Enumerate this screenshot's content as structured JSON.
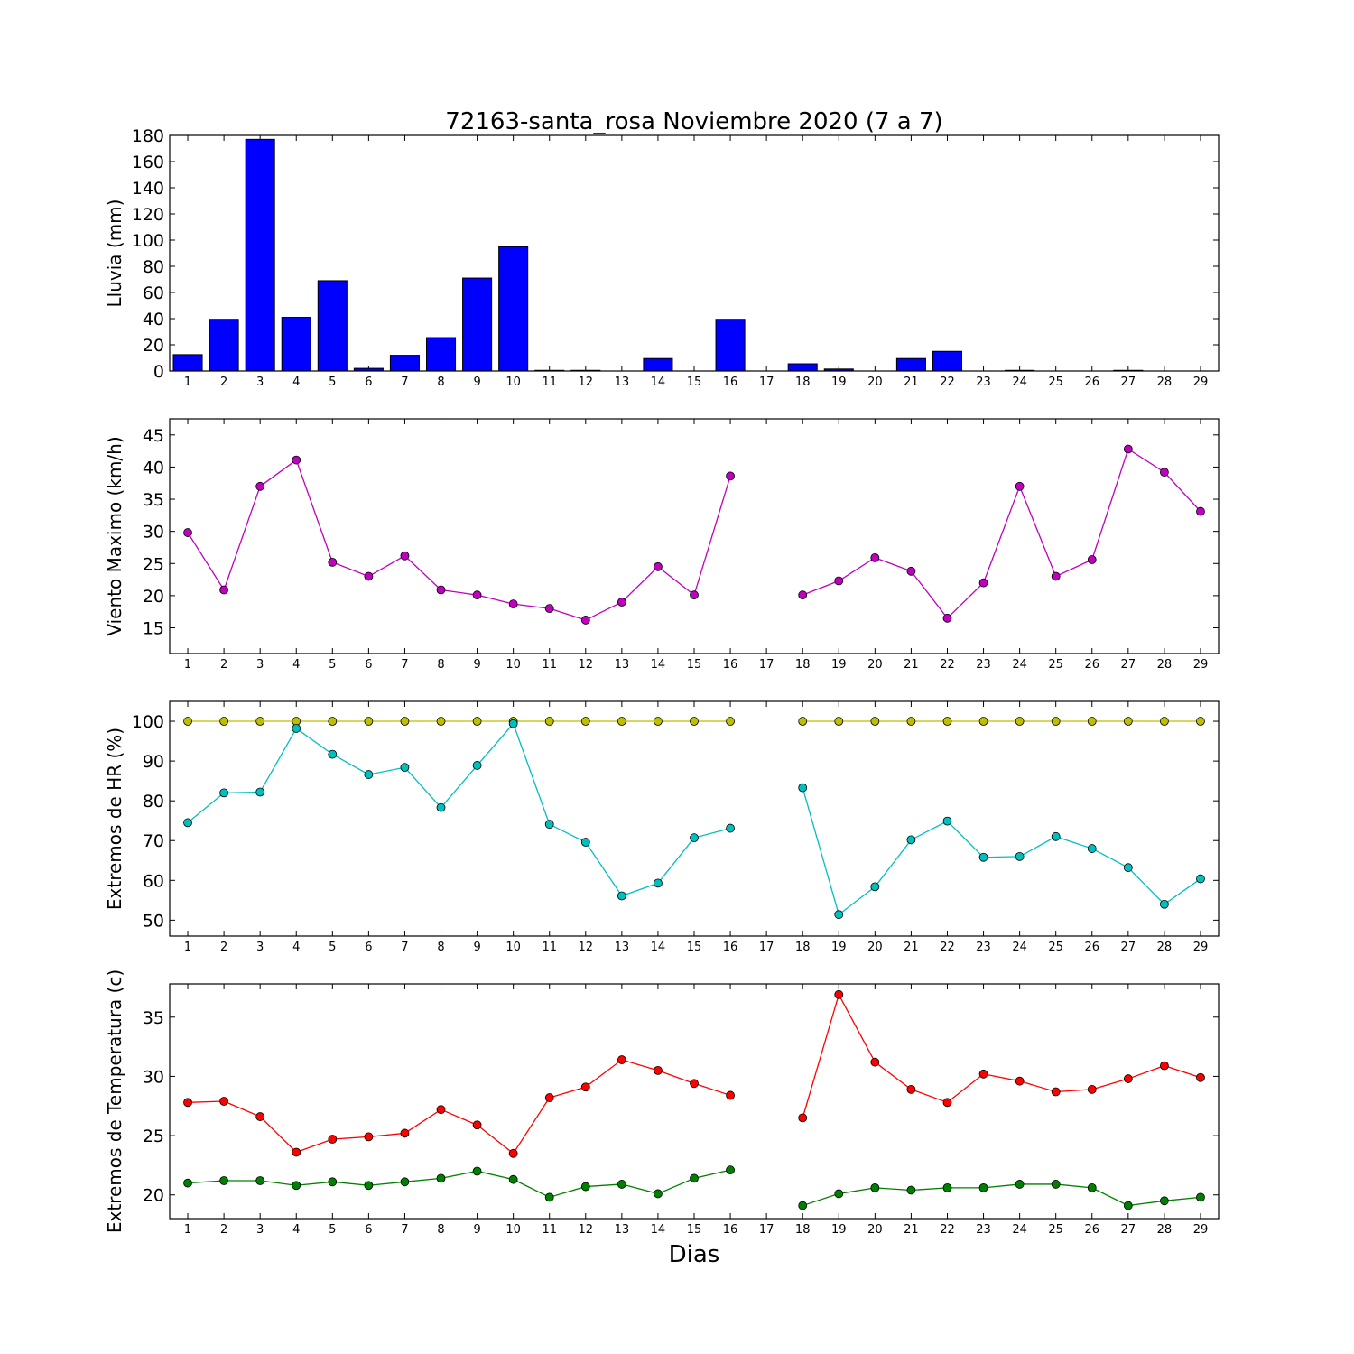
{
  "colors": {
    "rain_bar": "#0000ff",
    "wind": "#bf00bf",
    "hr_max": "#bfbf00",
    "hr_min": "#00bfbf",
    "temp_max": "#ff0000",
    "temp_min": "#008000"
  },
  "chart_data": [
    {
      "type": "bar",
      "title": "72163-santa_rosa Noviembre 2020  (7 a 7)",
      "ylabel": "Lluvia (mm)",
      "xlabel": "",
      "xlim": [
        0.5,
        29.5
      ],
      "ylim": [
        0,
        180
      ],
      "yticks": [
        0,
        20,
        40,
        60,
        80,
        100,
        120,
        140,
        160,
        180
      ],
      "categories": [
        "1",
        "2",
        "3",
        "4",
        "5",
        "6",
        "7",
        "8",
        "9",
        "10",
        "11",
        "12",
        "13",
        "14",
        "15",
        "16",
        "17",
        "18",
        "19",
        "20",
        "21",
        "22",
        "23",
        "24",
        "25",
        "26",
        "27",
        "28",
        "29"
      ],
      "series": [
        {
          "values": [
            12.5,
            39.5,
            177,
            41,
            69,
            2,
            12,
            25.5,
            71,
            95,
            0.5,
            0.5,
            0,
            9.5,
            0,
            39.5,
            0,
            5.5,
            1.5,
            0,
            9.5,
            15,
            0,
            0.5,
            0,
            0,
            0.5,
            0,
            0
          ]
        }
      ]
    },
    {
      "type": "line",
      "title": "",
      "ylabel": "Viento Maximo (km/h)",
      "xlabel": "",
      "xlim": [
        0.5,
        29.5
      ],
      "ylim": [
        11,
        47.5
      ],
      "yticks": [
        15,
        20,
        25,
        30,
        35,
        40,
        45
      ],
      "x": [
        1,
        2,
        3,
        4,
        5,
        6,
        7,
        8,
        9,
        10,
        11,
        12,
        13,
        14,
        15,
        16,
        17,
        18,
        19,
        20,
        21,
        22,
        23,
        24,
        25,
        26,
        27,
        28,
        29
      ],
      "series": [
        {
          "values": [
            29.8,
            20.9,
            37,
            41.1,
            25.2,
            23,
            26.2,
            20.9,
            20.1,
            18.7,
            18,
            16.2,
            19,
            24.5,
            20.1,
            38.6,
            null,
            20.1,
            22.3,
            25.9,
            23.8,
            16.5,
            22,
            37,
            23,
            25.6,
            42.8,
            39.2,
            33.1
          ]
        }
      ]
    },
    {
      "type": "line",
      "title": "",
      "ylabel": "Extremos de HR (%)",
      "xlabel": "",
      "xlim": [
        0.5,
        29.5
      ],
      "ylim": [
        46,
        105
      ],
      "yticks": [
        50,
        60,
        70,
        80,
        90,
        100
      ],
      "x": [
        1,
        2,
        3,
        4,
        5,
        6,
        7,
        8,
        9,
        10,
        11,
        12,
        13,
        14,
        15,
        16,
        17,
        18,
        19,
        20,
        21,
        22,
        23,
        24,
        25,
        26,
        27,
        28,
        29
      ],
      "series": [
        {
          "values": [
            100,
            100,
            100,
            100,
            100,
            100,
            100,
            100,
            100,
            100,
            100,
            100,
            100,
            100,
            100,
            100,
            null,
            100,
            100,
            100,
            100,
            100,
            100,
            100,
            100,
            100,
            100,
            100,
            100
          ]
        },
        {
          "values": [
            74.5,
            82,
            82.2,
            98.2,
            91.7,
            86.6,
            88.4,
            78.3,
            88.9,
            99.4,
            74.1,
            69.6,
            56.1,
            59.3,
            70.7,
            73.1,
            null,
            83.3,
            51.4,
            58.4,
            70.2,
            74.9,
            65.8,
            66,
            71,
            68,
            63.2,
            54,
            60.4
          ]
        }
      ]
    },
    {
      "type": "line",
      "title": "",
      "ylabel": "Extremos de Temperatura (c)",
      "xlabel": "Dias",
      "xlim": [
        0.5,
        29.5
      ],
      "ylim": [
        18,
        37.8
      ],
      "yticks": [
        20,
        25,
        30,
        35
      ],
      "x": [
        1,
        2,
        3,
        4,
        5,
        6,
        7,
        8,
        9,
        10,
        11,
        12,
        13,
        14,
        15,
        16,
        17,
        18,
        19,
        20,
        21,
        22,
        23,
        24,
        25,
        26,
        27,
        28,
        29
      ],
      "series": [
        {
          "values": [
            27.8,
            27.9,
            26.6,
            23.6,
            24.7,
            24.9,
            25.2,
            27.2,
            25.9,
            23.5,
            28.2,
            29.1,
            31.4,
            30.5,
            29.4,
            28.4,
            null,
            26.5,
            36.9,
            31.2,
            28.9,
            27.8,
            30.2,
            29.6,
            28.7,
            28.9,
            29.8,
            30.9,
            29.9
          ]
        },
        {
          "values": [
            21,
            21.2,
            21.2,
            20.8,
            21.1,
            20.8,
            21.1,
            21.4,
            22,
            21.3,
            19.8,
            20.7,
            20.9,
            20.1,
            21.4,
            22.1,
            null,
            19.1,
            20.1,
            20.6,
            20.4,
            20.6,
            20.6,
            20.9,
            20.9,
            20.6,
            19.1,
            19.5,
            19.8
          ]
        }
      ]
    }
  ]
}
